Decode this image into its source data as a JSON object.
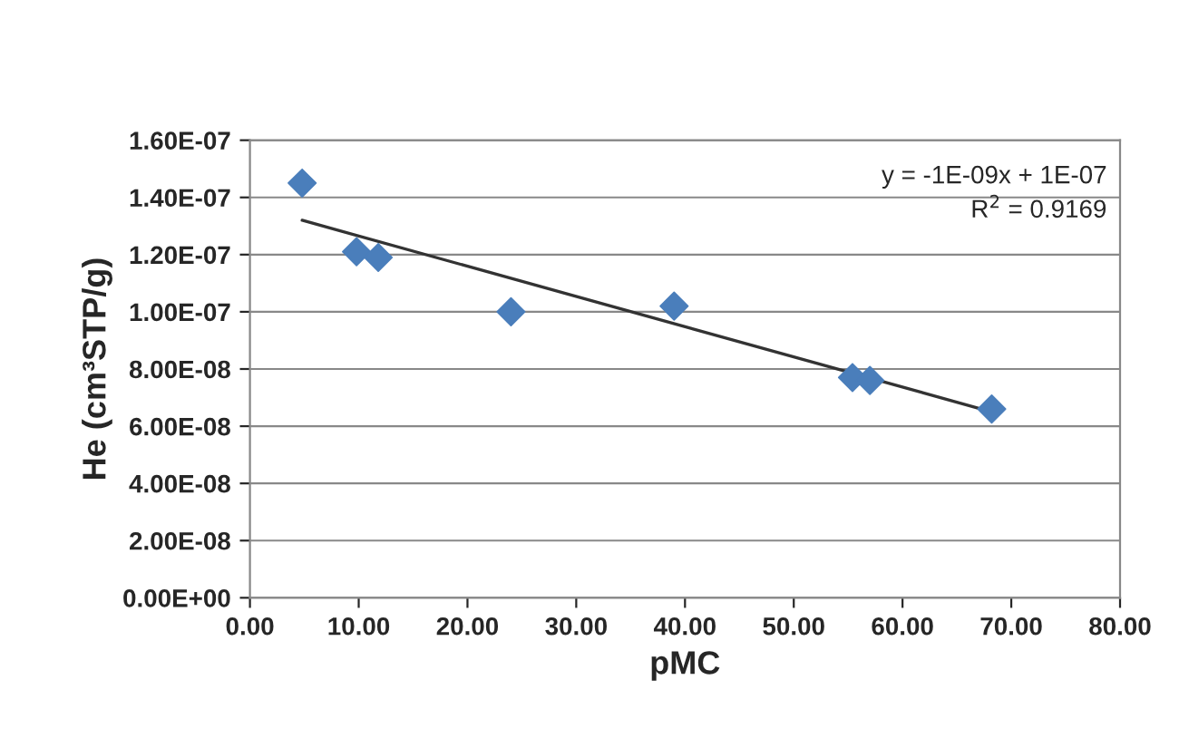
{
  "chart_data": {
    "type": "scatter",
    "xlabel": "pMC",
    "ylabel": "He (cm³STP/g)",
    "series": [
      {
        "color": "#4a7ebb",
        "marker": "diamond",
        "x": [
          4.8,
          9.8,
          11.8,
          24.0,
          39.0,
          55.4,
          57.0,
          68.2
        ],
        "values": [
          1.45e-07,
          1.21e-07,
          1.19e-07,
          1e-07,
          1.02e-07,
          7.7e-08,
          7.6e-08,
          6.6e-08
        ]
      },
      {
        "type": "line",
        "color": "#333333",
        "marker": "none",
        "x": [
          4.8,
          68.2
        ],
        "values": [
          1.32e-07,
          6.5e-08
        ]
      }
    ],
    "annotations": [
      "y = -1E-09x + 1E-07",
      "R$^{2}$ = 0.9169"
    ],
    "xlim": [
      0,
      80
    ],
    "xticks": [
      {
        "value": 0,
        "label": "0.00"
      },
      {
        "value": 10,
        "label": "10.00"
      },
      {
        "value": 20,
        "label": "20.00"
      },
      {
        "value": 30,
        "label": "30.00"
      },
      {
        "value": 40,
        "label": "40.00"
      },
      {
        "value": 50,
        "label": "50.00"
      },
      {
        "value": 60,
        "label": "60.00"
      },
      {
        "value": 70,
        "label": "70.00"
      },
      {
        "value": 80,
        "label": "80.00"
      }
    ],
    "ylim": [
      0,
      1.6e-07
    ],
    "yticks": [
      {
        "value": 0,
        "label": "0.00E+00"
      },
      {
        "value": 2e-08,
        "label": "2.00E-08"
      },
      {
        "value": 4e-08,
        "label": "4.00E-08"
      },
      {
        "value": 6e-08,
        "label": "6.00E-08"
      },
      {
        "value": 8e-08,
        "label": "8.00E-08"
      },
      {
        "value": 1e-07,
        "label": "1.00E-07"
      },
      {
        "value": 1.2e-07,
        "label": "1.20E-07"
      },
      {
        "value": 1.4e-07,
        "label": "1.40E-07"
      },
      {
        "value": 1.6e-07,
        "label": "1.60E-07"
      }
    ],
    "grid": "y",
    "legend": false
  }
}
